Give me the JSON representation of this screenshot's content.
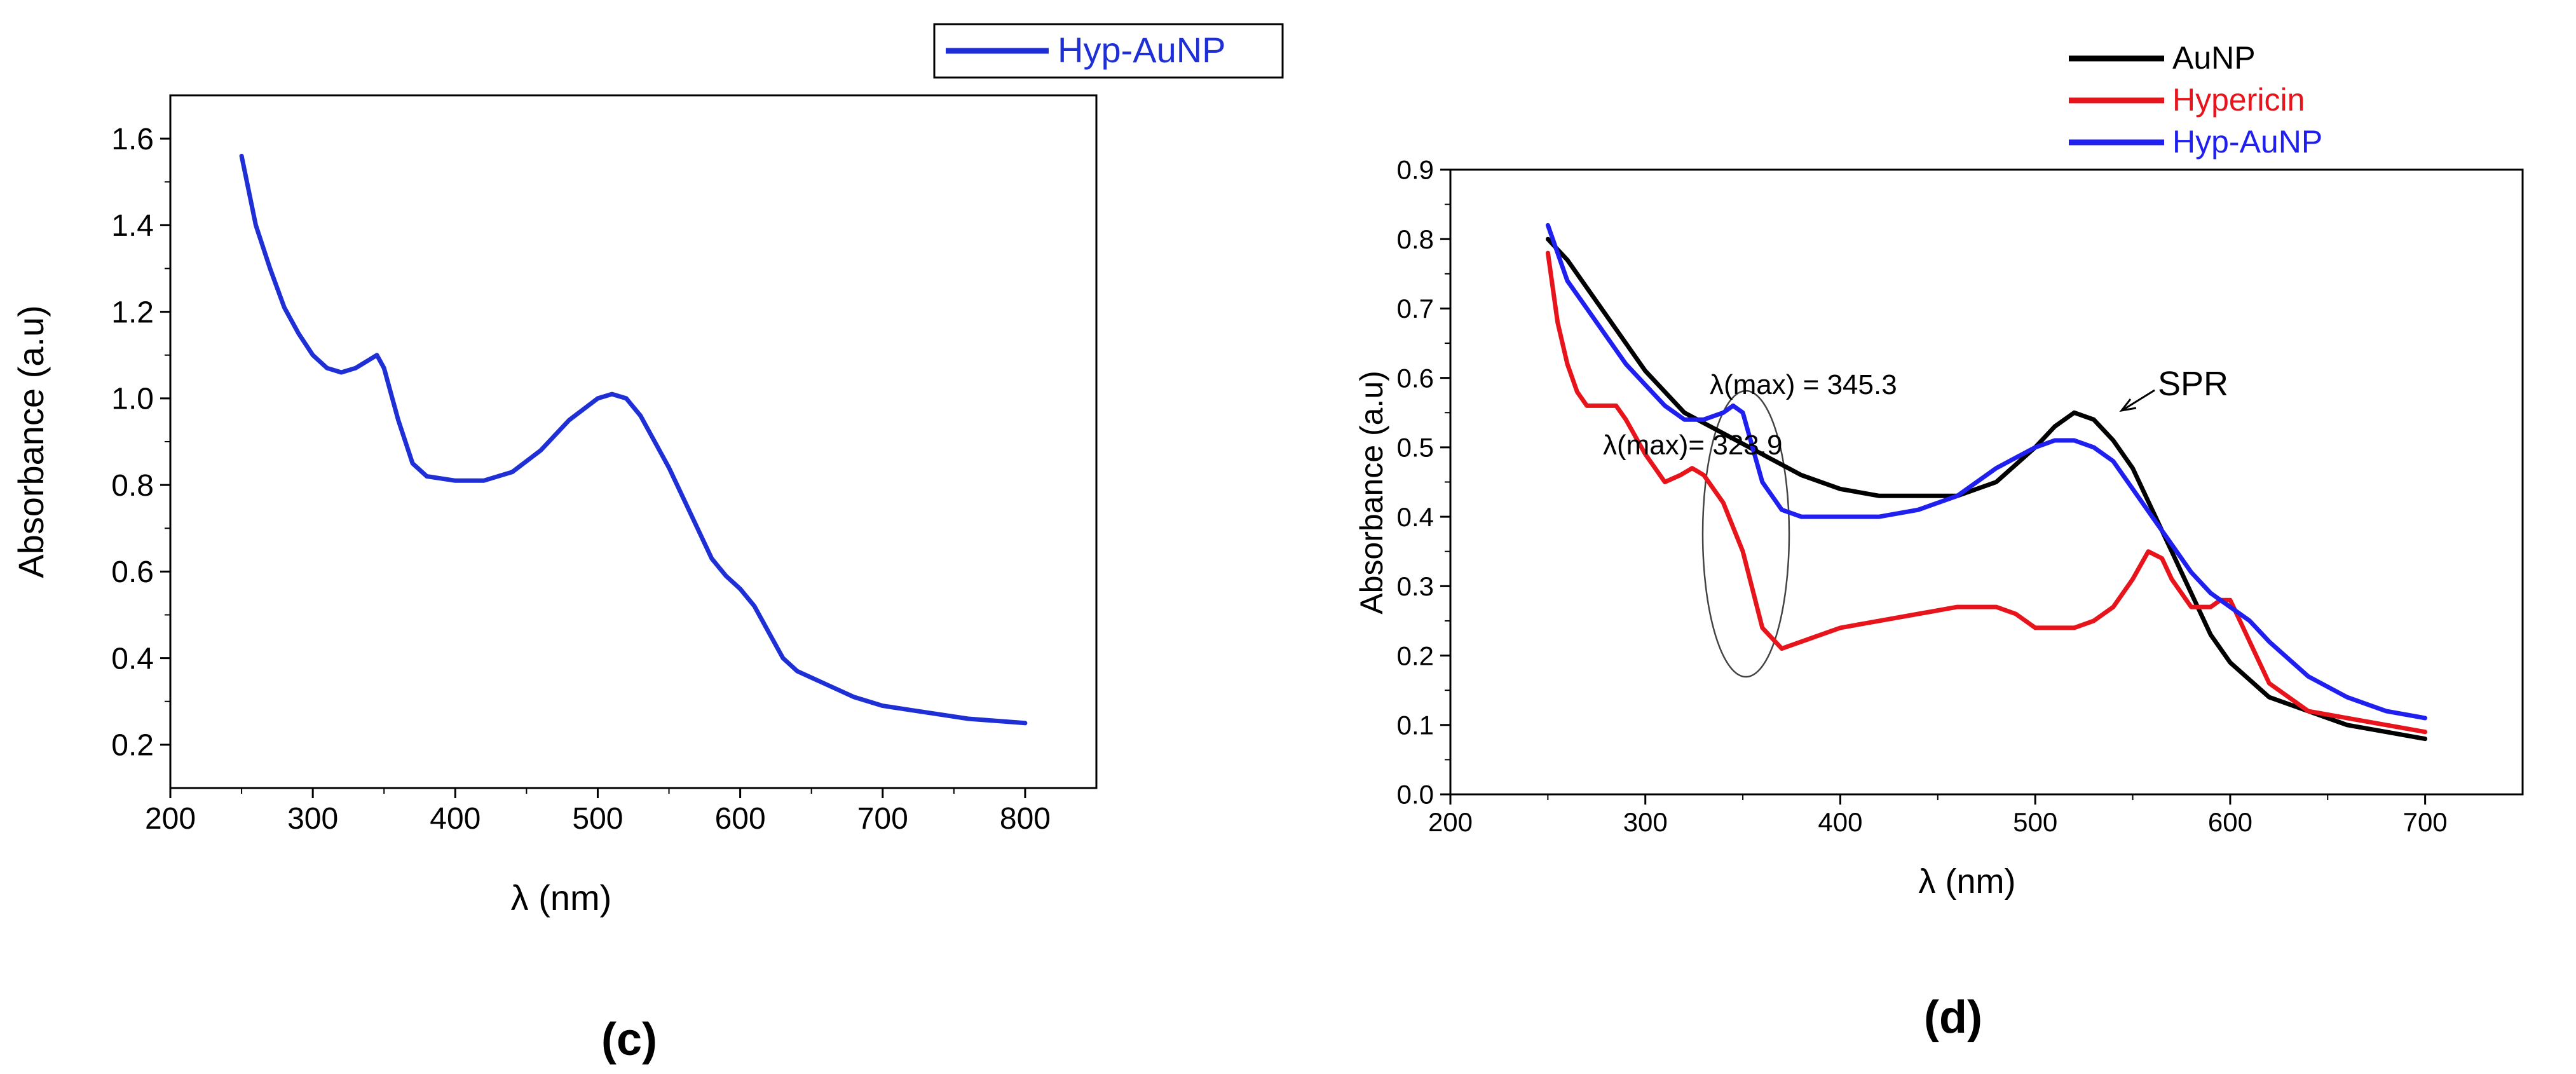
{
  "chart_data": [
    {
      "type": "line",
      "panel_label": "(c)",
      "title": "",
      "xlabel": "λ (nm)",
      "ylabel": "Absorbance (a.u)",
      "xlim": [
        200,
        850
      ],
      "ylim": [
        0.1,
        1.7
      ],
      "xticks": [
        200,
        300,
        400,
        500,
        600,
        700,
        800
      ],
      "yticks": [
        0.2,
        0.4,
        0.6,
        0.8,
        1.0,
        1.2,
        1.4,
        1.6
      ],
      "xtick_labels": [
        "200",
        "300",
        "400",
        "500",
        "600",
        "700",
        "800"
      ],
      "ytick_labels": [
        "0.2",
        "0.4",
        "0.6",
        "0.8",
        "1.0",
        "1.2",
        "1.4",
        "1.6"
      ],
      "legend": {
        "placement": "top-right",
        "entries": [
          "Hyp-AuNP"
        ]
      },
      "series": [
        {
          "name": "Hyp-AuNP",
          "color": "#1f2fd6",
          "x": [
            250,
            260,
            270,
            280,
            290,
            300,
            310,
            320,
            330,
            340,
            345,
            350,
            360,
            370,
            380,
            400,
            420,
            440,
            460,
            480,
            500,
            510,
            520,
            530,
            540,
            550,
            560,
            570,
            580,
            590,
            600,
            610,
            620,
            630,
            640,
            660,
            680,
            700,
            720,
            740,
            760,
            780,
            800
          ],
          "y": [
            1.56,
            1.4,
            1.3,
            1.21,
            1.15,
            1.1,
            1.07,
            1.06,
            1.07,
            1.09,
            1.1,
            1.07,
            0.95,
            0.85,
            0.82,
            0.81,
            0.81,
            0.83,
            0.88,
            0.95,
            1.0,
            1.01,
            1.0,
            0.96,
            0.9,
            0.84,
            0.77,
            0.7,
            0.63,
            0.59,
            0.56,
            0.52,
            0.46,
            0.4,
            0.37,
            0.34,
            0.31,
            0.29,
            0.28,
            0.27,
            0.26,
            0.255,
            0.25
          ]
        }
      ]
    },
    {
      "type": "line",
      "panel_label": "(d)",
      "title": "",
      "xlabel": "λ (nm)",
      "ylabel": "Absorbance (a.u)",
      "xlim": [
        200,
        750
      ],
      "ylim": [
        0.0,
        0.9
      ],
      "xticks": [
        200,
        300,
        400,
        500,
        600,
        700
      ],
      "yticks": [
        0.0,
        0.1,
        0.2,
        0.3,
        0.4,
        0.5,
        0.6,
        0.7,
        0.8,
        0.9
      ],
      "xtick_labels": [
        "200",
        "300",
        "400",
        "500",
        "600",
        "700"
      ],
      "ytick_labels": [
        "0.0",
        "0.1",
        "0.2",
        "0.3",
        "0.4",
        "0.5",
        "0.6",
        "0.7",
        "0.8",
        "0.9"
      ],
      "legend": {
        "placement": "top-right",
        "entries": [
          "AuNP",
          "Hypericin",
          "Hyp-AuNP"
        ]
      },
      "annotations": [
        {
          "text": "λ(max) = 345.3",
          "x": 345,
          "y": 0.56
        },
        {
          "text": "λ(max)= 323.9",
          "x": 324,
          "y": 0.47
        },
        {
          "text": "SPR",
          "x": 520,
          "y": 0.55
        }
      ],
      "series": [
        {
          "name": "AuNP",
          "color": "#000000",
          "x": [
            250,
            260,
            270,
            280,
            290,
            300,
            320,
            340,
            360,
            380,
            400,
            420,
            440,
            460,
            480,
            500,
            510,
            520,
            530,
            540,
            550,
            560,
            570,
            580,
            590,
            600,
            620,
            640,
            660,
            680,
            700
          ],
          "y": [
            0.8,
            0.77,
            0.73,
            0.69,
            0.65,
            0.61,
            0.55,
            0.52,
            0.49,
            0.46,
            0.44,
            0.43,
            0.43,
            0.43,
            0.45,
            0.5,
            0.53,
            0.55,
            0.54,
            0.51,
            0.47,
            0.41,
            0.35,
            0.29,
            0.23,
            0.19,
            0.14,
            0.12,
            0.1,
            0.09,
            0.08
          ]
        },
        {
          "name": "Hypericin",
          "color": "#e8141b",
          "x": [
            250,
            255,
            260,
            265,
            270,
            275,
            280,
            285,
            290,
            300,
            310,
            318,
            324,
            330,
            340,
            350,
            360,
            370,
            380,
            400,
            420,
            440,
            460,
            480,
            490,
            500,
            510,
            520,
            530,
            540,
            550,
            558,
            565,
            570,
            580,
            590,
            595,
            600,
            610,
            620,
            640,
            660,
            680,
            700
          ],
          "y": [
            0.78,
            0.68,
            0.62,
            0.58,
            0.56,
            0.56,
            0.56,
            0.56,
            0.54,
            0.49,
            0.45,
            0.46,
            0.47,
            0.46,
            0.42,
            0.35,
            0.24,
            0.21,
            0.22,
            0.24,
            0.25,
            0.26,
            0.27,
            0.27,
            0.26,
            0.24,
            0.24,
            0.24,
            0.25,
            0.27,
            0.31,
            0.35,
            0.34,
            0.31,
            0.27,
            0.27,
            0.28,
            0.28,
            0.22,
            0.16,
            0.12,
            0.11,
            0.1,
            0.09
          ]
        },
        {
          "name": "Hyp-AuNP",
          "color": "#1f1ff0",
          "x": [
            250,
            255,
            260,
            270,
            280,
            290,
            300,
            310,
            320,
            330,
            340,
            345,
            350,
            355,
            360,
            370,
            380,
            400,
            420,
            440,
            460,
            480,
            500,
            510,
            520,
            530,
            540,
            550,
            560,
            570,
            580,
            590,
            600,
            610,
            620,
            640,
            660,
            680,
            700
          ],
          "y": [
            0.82,
            0.78,
            0.74,
            0.7,
            0.66,
            0.62,
            0.59,
            0.56,
            0.54,
            0.54,
            0.55,
            0.56,
            0.55,
            0.5,
            0.45,
            0.41,
            0.4,
            0.4,
            0.4,
            0.41,
            0.43,
            0.47,
            0.5,
            0.51,
            0.51,
            0.5,
            0.48,
            0.44,
            0.4,
            0.36,
            0.32,
            0.29,
            0.27,
            0.25,
            0.22,
            0.17,
            0.14,
            0.12,
            0.11
          ]
        }
      ]
    }
  ]
}
